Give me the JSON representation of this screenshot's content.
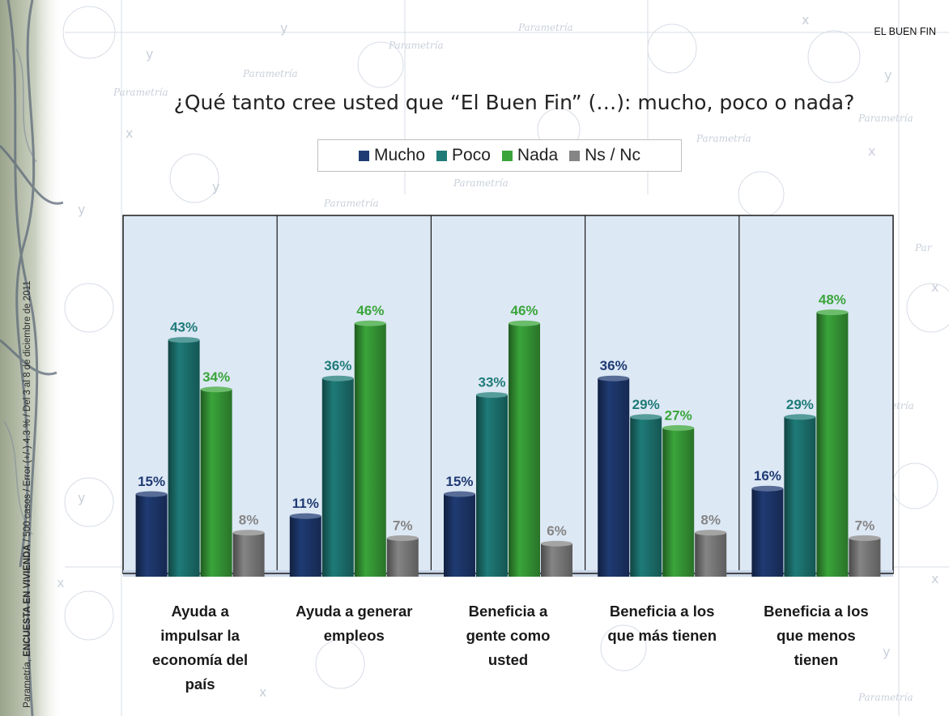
{
  "header": {
    "tag": "EL BUEN FIN"
  },
  "side_note": {
    "source_prefix": "Parametría, ",
    "source_bold": "ENCUESTA EN VIVIENDA",
    "source_rest": " / 500 casos / Error (+/-) 4.3 % / Del 3 al 8 de diciembre de 2011"
  },
  "chart_data": {
    "type": "bar",
    "title": "¿Qué tanto cree usted que “El Buen Fin” (…): mucho, poco o nada?",
    "categories": [
      "Ayuda a impulsar la economía del país",
      "Ayuda a generar empleos",
      "Beneficia a gente como usted",
      "Beneficia a los que más tienen",
      "Beneficia a los que menos tienen"
    ],
    "category_lines": [
      [
        "Ayuda a",
        "impulsar la",
        "economía del",
        "país"
      ],
      [
        "Ayuda a generar",
        "empleos"
      ],
      [
        "Beneficia a",
        "gente como",
        "usted"
      ],
      [
        "Beneficia a los",
        "que más tienen"
      ],
      [
        "Beneficia a los",
        "que menos",
        "tienen"
      ]
    ],
    "series": [
      {
        "name": "Mucho",
        "color": "#1f3b73",
        "values": [
          15,
          11,
          15,
          36,
          16
        ]
      },
      {
        "name": "Poco",
        "color": "#1e7b78",
        "values": [
          43,
          36,
          33,
          29,
          29
        ]
      },
      {
        "name": "Nada",
        "color": "#3aa53a",
        "values": [
          34,
          46,
          46,
          27,
          48
        ]
      },
      {
        "name": "Ns / Nc",
        "color": "#858585",
        "values": [
          8,
          7,
          6,
          8,
          7
        ]
      }
    ],
    "label_colors": [
      "#1f3b73",
      "#1e7b78",
      "#3aa53a",
      "#858585"
    ],
    "value_suffix": "%",
    "ylim": [
      0,
      65
    ],
    "legend_position": "top-center",
    "grid": false
  }
}
